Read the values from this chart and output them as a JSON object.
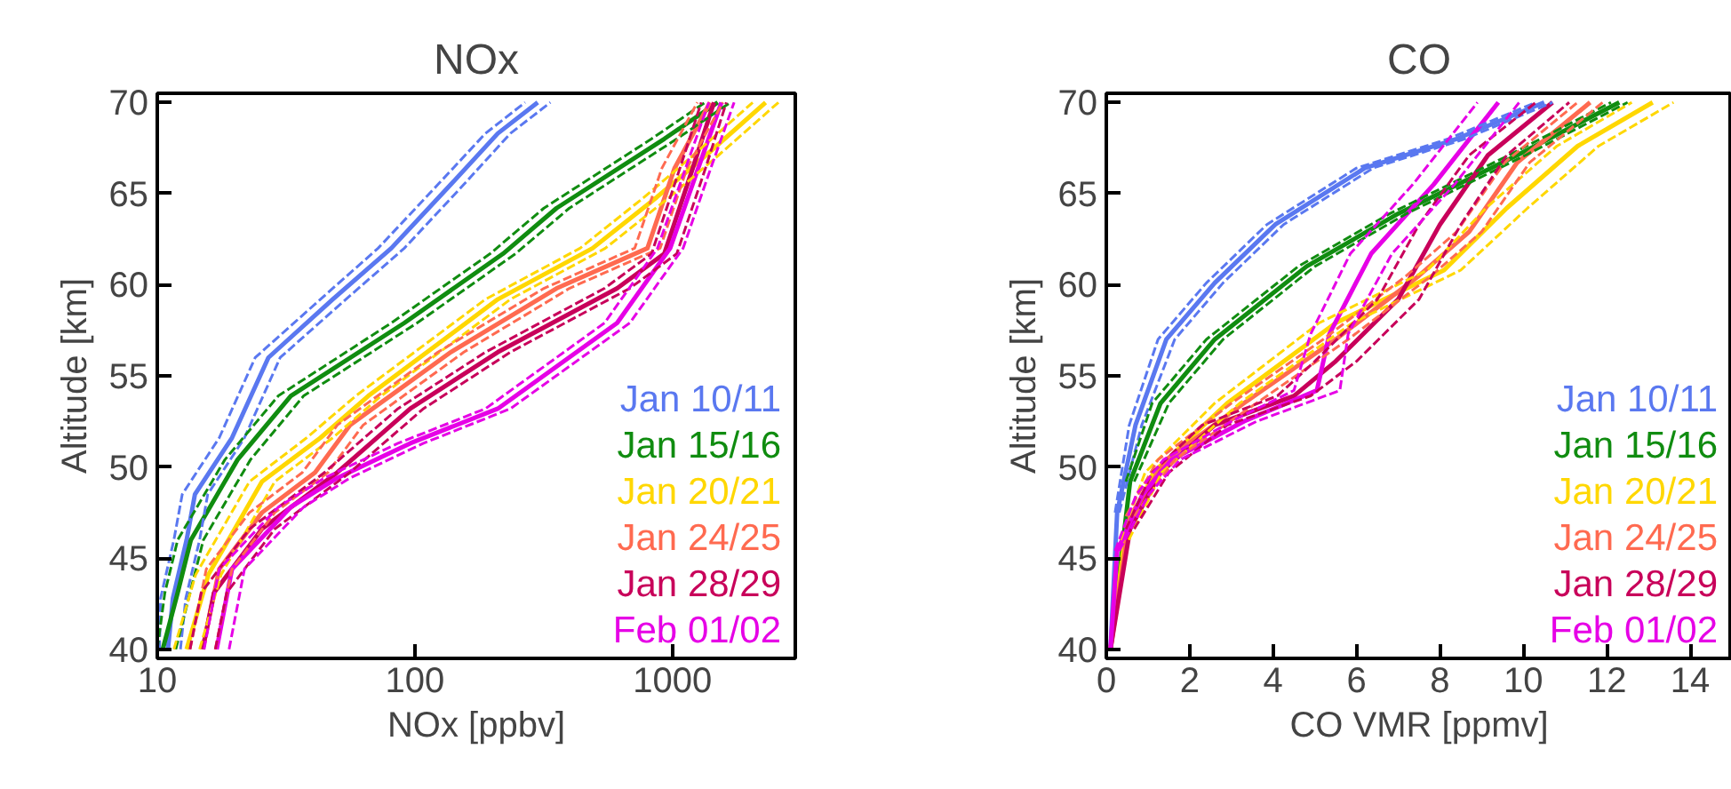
{
  "chart_data": [
    {
      "type": "line",
      "title": "NOx",
      "xlabel": "NOx [ppbv]",
      "ylabel": "Altitude [km]",
      "log": "x",
      "xlim": [
        10,
        3000
      ],
      "xticks": [
        10,
        100,
        1000
      ],
      "ylim": [
        39.5,
        70.5
      ],
      "yticks": [
        40,
        45,
        50,
        55,
        60,
        65,
        70
      ],
      "grid": false,
      "legend": "bottom right",
      "marker": "none",
      "series": [
        {
          "name": "Jan 10/11",
          "color": "#5a78f0",
          "line_style": "solid",
          "x": [
            11,
            11.5,
            13,
            14,
            19.5,
            27,
            48,
            81,
            138,
            210,
            300
          ],
          "values": [
            40,
            42.8,
            46,
            48.5,
            51.6,
            56,
            59.2,
            62,
            65.5,
            68.3,
            70
          ]
        },
        {
          "color": "#5a78f0",
          "line_style": "dashed",
          "x": [
            10.2,
            10.3,
            11.6,
            12.5,
            17.4,
            24,
            43,
            72,
            123,
            188,
            268
          ],
          "values": [
            40,
            42.8,
            46,
            48.5,
            51.6,
            56,
            59.2,
            62,
            65.5,
            68.3,
            70
          ]
        },
        {
          "color": "#5a78f0",
          "line_style": "dashed",
          "x": [
            12.3,
            12.9,
            14.6,
            15.7,
            21.8,
            30,
            54,
            91,
            155,
            235,
            336
          ],
          "values": [
            40,
            42.8,
            46,
            48.5,
            51.6,
            56,
            59.2,
            62,
            65.5,
            68.3,
            70
          ]
        },
        {
          "name": "Jan 15/16",
          "color": "#108c10",
          "line_style": "solid",
          "x": [
            10.5,
            12,
            13.5,
            20.5,
            33,
            91,
            220,
            355,
            930,
            1500
          ],
          "values": [
            40,
            43.1,
            46,
            50.4,
            53.9,
            57.9,
            61.7,
            64.2,
            68,
            70
          ]
        },
        {
          "color": "#108c10",
          "line_style": "dashed",
          "x": [
            10,
            10.7,
            12,
            18.3,
            29.5,
            81,
            196,
            317,
            830,
            1340
          ],
          "values": [
            40,
            43.1,
            46,
            50.4,
            53.9,
            57.9,
            61.7,
            64.2,
            68,
            70
          ]
        },
        {
          "color": "#108c10",
          "line_style": "dashed",
          "x": [
            11.8,
            13.4,
            15.1,
            23,
            37,
            102,
            246,
            398,
            1040,
            1680
          ],
          "values": [
            40,
            43.1,
            46,
            50.4,
            53.9,
            57.9,
            61.7,
            64.2,
            68,
            70
          ]
        },
        {
          "name": "Jan 20/21",
          "color": "#ffd700",
          "line_style": "solid",
          "x": [
            13,
            15.8,
            25.5,
            43,
            66,
            210,
            490,
            870,
            1350,
            2300
          ],
          "values": [
            40,
            44.1,
            49.2,
            51.6,
            53.9,
            59.2,
            62,
            64.8,
            67.1,
            70
          ]
        },
        {
          "color": "#ffd700",
          "line_style": "dashed",
          "x": [
            11.6,
            14.1,
            22.8,
            38,
            59,
            188,
            438,
            777,
            1205,
            2050
          ],
          "values": [
            40,
            44.1,
            49.2,
            51.6,
            53.9,
            59.2,
            62,
            64.8,
            67.1,
            70
          ]
        },
        {
          "color": "#ffd700",
          "line_style": "dashed",
          "x": [
            14.6,
            17.7,
            28.6,
            48,
            74,
            235,
            549,
            974,
            1510,
            2580
          ],
          "values": [
            40,
            44.1,
            49.2,
            51.6,
            53.9,
            59.2,
            62,
            64.8,
            67.1,
            70
          ]
        },
        {
          "name": "Jan 24/25",
          "color": "#ff6a50",
          "line_style": "solid",
          "x": [
            15,
            17.4,
            25.5,
            41,
            56,
            138,
            355,
            800,
            1020,
            1400
          ],
          "values": [
            40,
            44.4,
            47.5,
            49.7,
            52.3,
            56.3,
            59.8,
            62,
            66.4,
            70
          ]
        },
        {
          "color": "#ff6a50",
          "line_style": "dashed",
          "x": [
            13.4,
            15.5,
            22.8,
            36.6,
            50,
            123,
            317,
            714,
            911,
            1250
          ],
          "values": [
            40,
            44.4,
            47.5,
            49.7,
            52.3,
            56.3,
            59.8,
            62,
            66.4,
            70
          ]
        },
        {
          "color": "#ff6a50",
          "line_style": "dashed",
          "x": [
            16.8,
            19.5,
            28.6,
            46,
            63,
            155,
            398,
            896,
            1140,
            1570
          ],
          "values": [
            40,
            44.4,
            47.5,
            49.7,
            52.3,
            56.3,
            59.8,
            62,
            66.4,
            70
          ]
        },
        {
          "name": "Jan 28/29",
          "color": "#c8005a",
          "line_style": "solid",
          "x": [
            15,
            16.6,
            25.5,
            50,
            96,
            210,
            610,
            930,
            1200,
            1450
          ],
          "values": [
            40,
            43.1,
            46.6,
            49.7,
            53.2,
            56.3,
            59.8,
            61.7,
            66.4,
            70
          ]
        },
        {
          "color": "#c8005a",
          "line_style": "dashed",
          "x": [
            13.4,
            14.8,
            22.8,
            44.6,
            86,
            188,
            545,
            830,
            1070,
            1295
          ],
          "values": [
            40,
            43.1,
            46.6,
            49.7,
            53.2,
            56.3,
            59.8,
            61.7,
            66.4,
            70
          ]
        },
        {
          "color": "#c8005a",
          "line_style": "dashed",
          "x": [
            16.8,
            18.6,
            28.6,
            56,
            108,
            235,
            683,
            1040,
            1345,
            1620
          ],
          "values": [
            40,
            43.1,
            46.6,
            49.7,
            53.2,
            56.3,
            59.8,
            61.7,
            66.4,
            70
          ]
        },
        {
          "name": "Feb 01/02",
          "color": "#e600e6",
          "line_style": "solid",
          "x": [
            17,
            19.5,
            33,
            50,
            96,
            210,
            610,
            980,
            1260,
            1550
          ],
          "values": [
            40,
            44.4,
            47.8,
            49.4,
            51.3,
            53.2,
            57.9,
            62,
            66.4,
            70
          ]
        },
        {
          "color": "#e600e6",
          "line_style": "dashed",
          "x": [
            15.2,
            17.4,
            29.5,
            44.6,
            86,
            188,
            545,
            875,
            1125,
            1385
          ],
          "values": [
            40,
            44.4,
            47.8,
            49.4,
            51.3,
            53.2,
            57.9,
            62,
            66.4,
            70
          ]
        },
        {
          "color": "#e600e6",
          "line_style": "dashed",
          "x": [
            19,
            21.8,
            37,
            56,
            108,
            235,
            683,
            1100,
            1410,
            1736
          ],
          "values": [
            40,
            44.4,
            47.8,
            49.4,
            51.3,
            53.2,
            57.9,
            62,
            66.4,
            70
          ]
        }
      ]
    },
    {
      "type": "line",
      "title": "CO",
      "xlabel": "CO VMR [ppmv]",
      "ylabel": "Altitude [km]",
      "xlim": [
        0,
        15
      ],
      "xticks": [
        0,
        2,
        4,
        6,
        8,
        10,
        12,
        14
      ],
      "ylim": [
        39.5,
        70.5
      ],
      "yticks": [
        40,
        45,
        50,
        55,
        60,
        65,
        70
      ],
      "grid": false,
      "legend": "bottom right",
      "marker": "none",
      "series": [
        {
          "name": "Jan 10/11",
          "color": "#5a78f0",
          "line_style": "solid",
          "x": [
            0.1,
            0.26,
            0.7,
            1.44,
            2.6,
            4.05,
            6.2,
            8.4,
            10.5
          ],
          "values": [
            40,
            47.5,
            52.3,
            57,
            60.1,
            63.3,
            66.4,
            68,
            70
          ]
        },
        {
          "color": "#5a78f0",
          "line_style": "dashed",
          "x": [
            0.21,
            0.55,
            1.24,
            2.4,
            3.85,
            6.0,
            8.2,
            10.3
          ],
          "values": [
            47.5,
            52.3,
            57,
            60.1,
            63.3,
            66.4,
            68,
            70
          ]
        },
        {
          "color": "#5a78f0",
          "line_style": "dashed",
          "x": [
            0.31,
            0.85,
            1.64,
            2.8,
            4.25,
            6.4,
            8.6,
            10.7
          ],
          "values": [
            47.5,
            52.3,
            57,
            60.1,
            63.3,
            66.4,
            68,
            70
          ]
        },
        {
          "name": "Jan 15/16",
          "color": "#108c10",
          "line_style": "solid",
          "x": [
            0.1,
            0.57,
            1.3,
            2.6,
            4.8,
            7.0,
            9.85,
            12.3
          ],
          "values": [
            40,
            49.2,
            53.5,
            57,
            61,
            63.9,
            67.1,
            70
          ]
        },
        {
          "color": "#108c10",
          "line_style": "dashed",
          "x": [
            0.47,
            1.1,
            2.4,
            4.6,
            6.8,
            9.65,
            12.1
          ],
          "values": [
            49.2,
            53.5,
            57,
            61,
            63.9,
            67.1,
            70
          ]
        },
        {
          "color": "#108c10",
          "line_style": "dashed",
          "x": [
            0.67,
            1.5,
            2.8,
            5.0,
            7.2,
            10.05,
            12.5
          ],
          "values": [
            49.2,
            53.5,
            57,
            61,
            63.9,
            67.1,
            70
          ]
        },
        {
          "name": "Jan 20/21",
          "color": "#ffd700",
          "line_style": "solid",
          "x": [
            0.1,
            0.44,
            1.13,
            2.9,
            5.5,
            8.1,
            9.6,
            11.3,
            13.1
          ],
          "values": [
            40,
            46,
            49.7,
            53.5,
            57.9,
            60.8,
            64.2,
            67.6,
            70
          ]
        },
        {
          "color": "#ffd700",
          "line_style": "dashed",
          "x": [
            0.34,
            0.93,
            2.6,
            5.1,
            7.7,
            9.1,
            10.8,
            12.6
          ],
          "values": [
            46,
            49.7,
            53.5,
            57.9,
            60.8,
            64.2,
            67.6,
            70
          ]
        },
        {
          "color": "#ffd700",
          "line_style": "dashed",
          "x": [
            0.54,
            1.33,
            3.2,
            5.9,
            8.5,
            10.1,
            11.8,
            13.6
          ],
          "values": [
            46,
            49.7,
            53.5,
            57.9,
            60.8,
            64.2,
            67.6,
            70
          ]
        },
        {
          "name": "Jan 24/25",
          "color": "#ff6a50",
          "line_style": "solid",
          "x": [
            0.1,
            0.57,
            1.44,
            3.3,
            5.5,
            7.5,
            8.7,
            9.85,
            11.6
          ],
          "values": [
            40,
            47.3,
            50.4,
            53.5,
            57,
            60.5,
            62.9,
            66.7,
            70
          ]
        },
        {
          "color": "#ff6a50",
          "line_style": "dashed",
          "x": [
            0.47,
            1.24,
            3.0,
            5.2,
            7.2,
            8.4,
            9.55,
            11.3
          ],
          "values": [
            47.3,
            50.4,
            53.5,
            57,
            60.5,
            62.9,
            66.7,
            70
          ]
        },
        {
          "color": "#ff6a50",
          "line_style": "dashed",
          "x": [
            0.67,
            1.64,
            3.6,
            5.8,
            7.8,
            9.0,
            10.15,
            11.9
          ],
          "values": [
            47.3,
            50.4,
            53.5,
            57,
            60.5,
            62.9,
            66.7,
            70
          ]
        },
        {
          "name": "Jan 28/29",
          "color": "#c8005a",
          "line_style": "solid",
          "x": [
            0.1,
            0.57,
            1.3,
            2.6,
            4.5,
            5.5,
            7.0,
            8.0,
            9.15,
            10.7
          ],
          "values": [
            40,
            46.6,
            49.7,
            52.3,
            53.9,
            55.8,
            59.2,
            63.3,
            67.1,
            70
          ]
        },
        {
          "color": "#c8005a",
          "line_style": "dashed",
          "x": [
            0.47,
            1.1,
            2.3,
            4.1,
            5.0,
            6.5,
            7.5,
            8.7,
            10.3
          ],
          "values": [
            46.6,
            49.7,
            52.3,
            53.9,
            55.8,
            59.2,
            63.3,
            67.1,
            70
          ]
        },
        {
          "color": "#c8005a",
          "line_style": "dashed",
          "x": [
            0.67,
            1.5,
            2.9,
            4.9,
            6.0,
            7.5,
            8.5,
            9.6,
            11.1
          ],
          "values": [
            46.6,
            49.7,
            52.3,
            53.9,
            55.8,
            59.2,
            63.3,
            67.1,
            70
          ]
        },
        {
          "name": "Feb 01/02",
          "color": "#e600e6",
          "line_style": "solid",
          "x": [
            0.1,
            0.26,
            0.87,
            1.57,
            3.3,
            5.05,
            5.35,
            6.35,
            7.85,
            9.4
          ],
          "values": [
            40,
            45.4,
            48.5,
            50.4,
            52.5,
            54.2,
            57.3,
            61.7,
            65.5,
            70
          ]
        },
        {
          "color": "#e600e6",
          "line_style": "dashed",
          "x": [
            0.21,
            0.72,
            1.37,
            3.0,
            4.5,
            4.9,
            5.85,
            7.35,
            8.9
          ],
          "values": [
            45.4,
            48.5,
            50.4,
            52.5,
            54.2,
            57.3,
            61.7,
            65.5,
            70
          ]
        },
        {
          "color": "#e600e6",
          "line_style": "dashed",
          "x": [
            0.31,
            1.02,
            1.77,
            3.6,
            5.6,
            5.8,
            6.85,
            8.35,
            9.9
          ],
          "values": [
            45.4,
            48.5,
            50.4,
            52.5,
            54.2,
            57.3,
            61.7,
            65.5,
            70
          ]
        }
      ]
    }
  ]
}
